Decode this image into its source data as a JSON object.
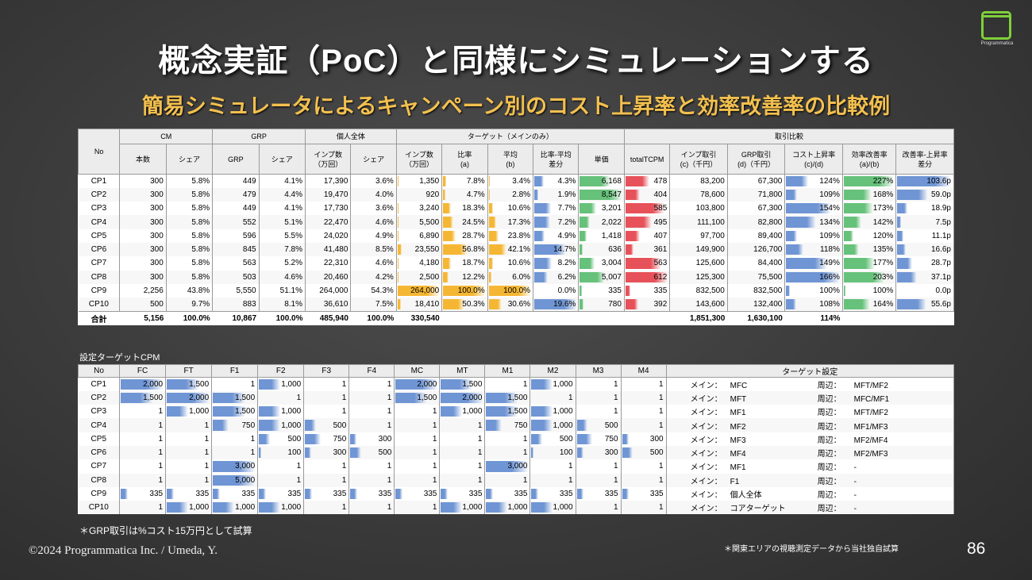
{
  "title": "概念実証（PoC）と同様にシミュレーションする",
  "subtitle": "簡易シミュレータによるキャンペーン別のコスト上昇率と効率改善率の比較例",
  "logo_text": "Programmatica",
  "colors": {
    "orange": "#f5b733",
    "blue": "#6f95d4",
    "green": "#66c17a",
    "red": "#e7525a"
  },
  "table1": {
    "groups": {
      "no": "No",
      "cm": "CM",
      "grp": "GRP",
      "kojin": "個人全体",
      "target": "ターゲット（メインのみ）",
      "torihiki": "取引比較"
    },
    "sub": [
      "本数",
      "シェア",
      "GRP",
      "シェア",
      "インプ数\n（万回）",
      "シェア",
      "インプ数\n（万回）",
      "比率\n(a)",
      "平均\n(b)",
      "比率-平均\n差分",
      "単価",
      "totalTCPM",
      "インプ取引\n(c)（千円）",
      "GRP取引\n(d)（千円）",
      "コスト上昇率\n(c)/(d)",
      "効率改善率\n(a)/(b)",
      "改善率-上昇率\n差分"
    ],
    "rows": [
      [
        "CP1",
        "300",
        "5.8%",
        "449",
        "4.1%",
        "17,390",
        "3.6%",
        "1,350",
        "7.8%",
        "3.4%",
        "4.3%",
        "6,168",
        "478",
        "83,200",
        "67,300",
        "124%",
        "227%",
        "103.6p"
      ],
      [
        "CP2",
        "300",
        "5.8%",
        "479",
        "4.4%",
        "19,470",
        "4.0%",
        "920",
        "4.7%",
        "2.8%",
        "1.9%",
        "8,547",
        "404",
        "78,600",
        "71,800",
        "109%",
        "168%",
        "59.0p"
      ],
      [
        "CP3",
        "300",
        "5.8%",
        "449",
        "4.1%",
        "17,730",
        "3.6%",
        "3,240",
        "18.3%",
        "10.6%",
        "7.7%",
        "3,201",
        "585",
        "103,800",
        "67,300",
        "154%",
        "173%",
        "18.9p"
      ],
      [
        "CP4",
        "300",
        "5.8%",
        "552",
        "5.1%",
        "22,470",
        "4.6%",
        "5,500",
        "24.5%",
        "17.3%",
        "7.2%",
        "2,022",
        "495",
        "111,100",
        "82,800",
        "134%",
        "142%",
        "7.5p"
      ],
      [
        "CP5",
        "300",
        "5.8%",
        "596",
        "5.5%",
        "24,020",
        "4.9%",
        "6,890",
        "28.7%",
        "23.8%",
        "4.9%",
        "1,418",
        "407",
        "97,700",
        "89,400",
        "109%",
        "120%",
        "11.1p"
      ],
      [
        "CP6",
        "300",
        "5.8%",
        "845",
        "7.8%",
        "41,480",
        "8.5%",
        "23,550",
        "56.8%",
        "42.1%",
        "14.7%",
        "636",
        "361",
        "149,900",
        "126,700",
        "118%",
        "135%",
        "16.6p"
      ],
      [
        "CP7",
        "300",
        "5.8%",
        "563",
        "5.2%",
        "22,310",
        "4.6%",
        "4,180",
        "18.7%",
        "10.6%",
        "8.2%",
        "3,004",
        "563",
        "125,600",
        "84,400",
        "149%",
        "177%",
        "28.7p"
      ],
      [
        "CP8",
        "300",
        "5.8%",
        "503",
        "4.6%",
        "20,460",
        "4.2%",
        "2,500",
        "12.2%",
        "6.0%",
        "6.2%",
        "5,007",
        "612",
        "125,300",
        "75,500",
        "166%",
        "203%",
        "37.1p"
      ],
      [
        "CP9",
        "2,256",
        "43.8%",
        "5,550",
        "51.1%",
        "264,000",
        "54.3%",
        "264,000",
        "100.0%",
        "100.0%",
        "0.0%",
        "335",
        "335",
        "832,500",
        "832,500",
        "100%",
        "100%",
        "0.0p"
      ],
      [
        "CP10",
        "500",
        "9.7%",
        "883",
        "8.1%",
        "36,610",
        "7.5%",
        "18,410",
        "50.3%",
        "30.6%",
        "19.6%",
        "780",
        "392",
        "143,600",
        "132,400",
        "108%",
        "164%",
        "55.6p"
      ]
    ],
    "total": [
      "合計",
      "5,156",
      "100.0%",
      "10,867",
      "100.0%",
      "485,940",
      "100.0%",
      "330,540",
      "",
      "",
      "",
      "",
      "",
      "1,851,300",
      "1,630,100",
      "114%",
      "",
      ""
    ]
  },
  "section2_label": "設定ターゲットCPM",
  "table2": {
    "headers": [
      "No",
      "FC",
      "FT",
      "F1",
      "F2",
      "F3",
      "F4",
      "MC",
      "MT",
      "M1",
      "M2",
      "M3",
      "M4",
      "ターゲット設定"
    ],
    "rows": [
      [
        "CP1",
        "2,000",
        "1,500",
        "1",
        "1,000",
        "1",
        "1",
        "2,000",
        "1,500",
        "1",
        "1,000",
        "1",
        "1",
        "メイン：",
        "MFC",
        "周辺：",
        "MFT/MF2"
      ],
      [
        "CP2",
        "1,500",
        "2,000",
        "1,500",
        "1",
        "1",
        "1",
        "1,500",
        "2,000",
        "1,500",
        "1",
        "1",
        "1",
        "メイン：",
        "MFT",
        "周辺：",
        "MFC/MF1"
      ],
      [
        "CP3",
        "1",
        "1,000",
        "1,500",
        "1,000",
        "1",
        "1",
        "1",
        "1,000",
        "1,500",
        "1,000",
        "1",
        "1",
        "メイン：",
        "MF1",
        "周辺：",
        "MFT/MF2"
      ],
      [
        "CP4",
        "1",
        "1",
        "750",
        "1,000",
        "500",
        "1",
        "1",
        "1",
        "750",
        "1,000",
        "500",
        "1",
        "メイン：",
        "MF2",
        "周辺：",
        "MF1/MF3"
      ],
      [
        "CP5",
        "1",
        "1",
        "1",
        "500",
        "750",
        "300",
        "1",
        "1",
        "1",
        "500",
        "750",
        "300",
        "メイン：",
        "MF3",
        "周辺：",
        "MF2/MF4"
      ],
      [
        "CP6",
        "1",
        "1",
        "1",
        "100",
        "300",
        "500",
        "1",
        "1",
        "1",
        "100",
        "300",
        "500",
        "メイン：",
        "MF4",
        "周辺：",
        "MF2/MF3"
      ],
      [
        "CP7",
        "1",
        "1",
        "3,000",
        "1",
        "1",
        "1",
        "1",
        "1",
        "3,000",
        "1",
        "1",
        "1",
        "メイン：",
        "MF1",
        "周辺：",
        "-"
      ],
      [
        "CP8",
        "1",
        "1",
        "5,000",
        "1",
        "1",
        "1",
        "1",
        "1",
        "1",
        "1",
        "1",
        "1",
        "メイン：",
        "F1",
        "周辺：",
        "-"
      ],
      [
        "CP9",
        "335",
        "335",
        "335",
        "335",
        "335",
        "335",
        "335",
        "335",
        "335",
        "335",
        "335",
        "335",
        "メイン：",
        "個人全体",
        "周辺：",
        "-"
      ],
      [
        "CP10",
        "1",
        "1,000",
        "1,000",
        "1,000",
        "1",
        "1",
        "1",
        "1,000",
        "1,000",
        "1,000",
        "1",
        "1",
        "メイン：",
        "コアターゲット",
        "周辺：",
        "-"
      ]
    ]
  },
  "note_grp": "＊GRP取引は%コスト15万円として試算",
  "note_source": "＊関東エリアの視聴測定データから当社独自試算",
  "copyright": "©2024  Programmatica Inc. / Umeda, Y.",
  "page_number": "86"
}
